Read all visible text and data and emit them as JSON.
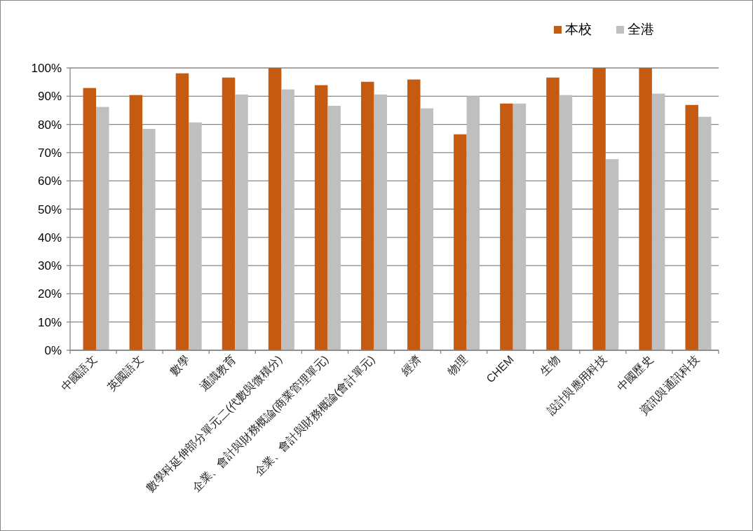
{
  "chart_data": {
    "type": "bar",
    "categories": [
      "中國語文",
      "英國語文",
      "數學",
      "通識教育",
      "數學科延伸部分單元二(代數與微積分)",
      "企業、會計與財務概論(商業管理單元)",
      "企業、會計與財務概論(會計單元)",
      "經濟",
      "物理",
      "CHEM",
      "生物",
      "設計與應用科技",
      "中國歷史",
      "資訊與通訊科技"
    ],
    "series": [
      {
        "name": "本校",
        "color": "#c55a11",
        "values": [
          92.9,
          90.4,
          98.1,
          96.6,
          100,
          93.9,
          95.1,
          95.9,
          76.5,
          87.4,
          96.6,
          100,
          100,
          86.9
        ]
      },
      {
        "name": "全港",
        "color": "#bfbfbf",
        "values": [
          86.2,
          78.4,
          80.7,
          90.6,
          92.4,
          86.6,
          90.6,
          85.7,
          90.0,
          87.4,
          90.4,
          67.7,
          90.9,
          82.7
        ]
      }
    ],
    "ylim": [
      0,
      100
    ],
    "yticks": [
      {
        "value": 0,
        "label": "0%"
      },
      {
        "value": 10,
        "label": "10%"
      },
      {
        "value": 20,
        "label": "20%"
      },
      {
        "value": 30,
        "label": "30%"
      },
      {
        "value": 40,
        "label": "40%"
      },
      {
        "value": 50,
        "label": "50%"
      },
      {
        "value": 60,
        "label": "60%"
      },
      {
        "value": 70,
        "label": "70%"
      },
      {
        "value": 80,
        "label": "80%"
      },
      {
        "value": 90,
        "label": "90%"
      },
      {
        "value": 100,
        "label": "100%"
      }
    ],
    "grid": "y",
    "legend": "top right"
  }
}
